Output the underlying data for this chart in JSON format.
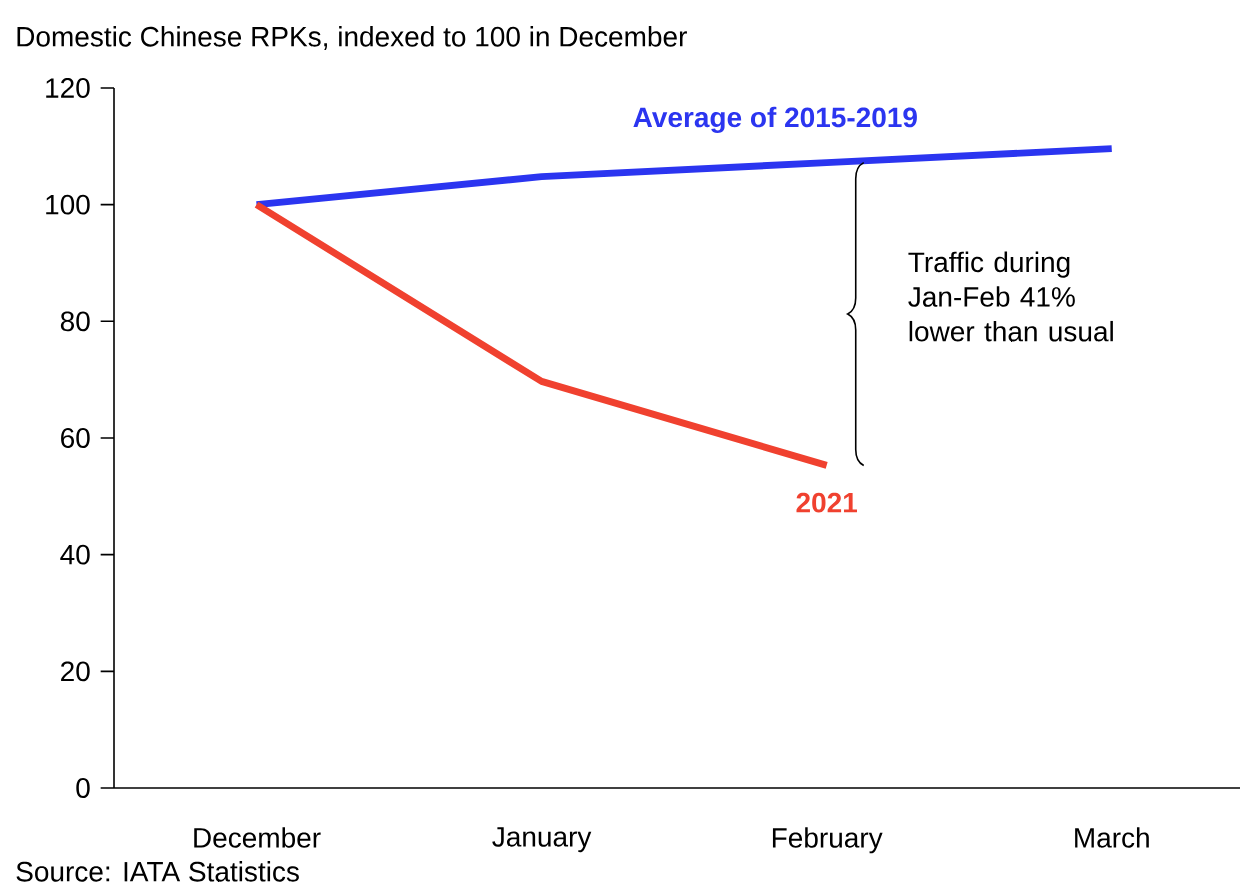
{
  "chart_data": {
    "type": "line",
    "title": "Domestic Chinese RPKs, indexed to 100 in December",
    "categories": [
      "December",
      "January",
      "February",
      "March"
    ],
    "series": [
      {
        "name": "Average of 2015-2019",
        "color": "#2b35f0",
        "values": [
          100,
          104.8,
          107.2,
          109.6
        ]
      },
      {
        "name": "2021",
        "color": "#f0412f",
        "values": [
          100,
          69.7,
          55.3,
          null
        ]
      }
    ],
    "ylim": [
      0,
      120
    ],
    "yticks": [
      0,
      20,
      40,
      60,
      80,
      100,
      120
    ],
    "grid": false,
    "marker": "none",
    "line_style": "solid",
    "annotations": [
      "Traffic during Jan-Feb 41% lower than usual",
      "Source: IATA Statistics"
    ]
  }
}
